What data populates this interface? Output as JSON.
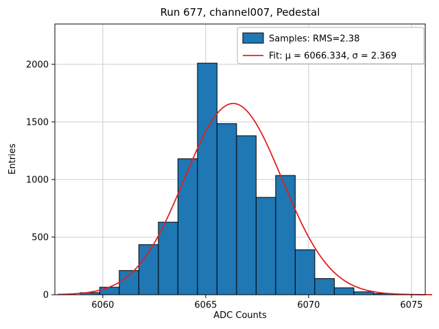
{
  "figure": {
    "title": "Run 677, channel007, Pedestal",
    "xlabel": "ADC Counts",
    "ylabel": "Entries"
  },
  "legend": {
    "samples_label": "Samples: RMS=2.38",
    "fit_label": "Fit: μ = 6066.334, σ = 2.369"
  },
  "chart_data": {
    "type": "bar",
    "subtype": "histogram-with-gaussian-fit",
    "title": "Run 677, channel007, Pedestal",
    "xlabel": "ADC Counts",
    "ylabel": "Entries",
    "xlim": [
      6057.67,
      6075.67
    ],
    "ylim": [
      0,
      2350
    ],
    "xticks": [
      6060,
      6065,
      6070,
      6075
    ],
    "yticks": [
      0,
      500,
      1000,
      1500,
      2000
    ],
    "grid": true,
    "grid_color": "#cccccc",
    "legend_position": "upper right",
    "histogram": {
      "name": "Samples",
      "rms": 2.38,
      "bin_start": 6058.9,
      "bin_width": 0.95,
      "counts": [
        18,
        65,
        210,
        435,
        630,
        1180,
        2010,
        1485,
        1380,
        845,
        1035,
        390,
        140,
        60,
        25,
        10
      ],
      "fill_color": "#1f77b4",
      "edge_color": "#000000"
    },
    "fit": {
      "name": "Fit",
      "shape": "gaussian",
      "mu": 6066.334,
      "sigma": 2.369,
      "amplitude": 1660,
      "x_range": [
        6057.8,
        6076.0
      ],
      "color": "#e02020"
    }
  }
}
